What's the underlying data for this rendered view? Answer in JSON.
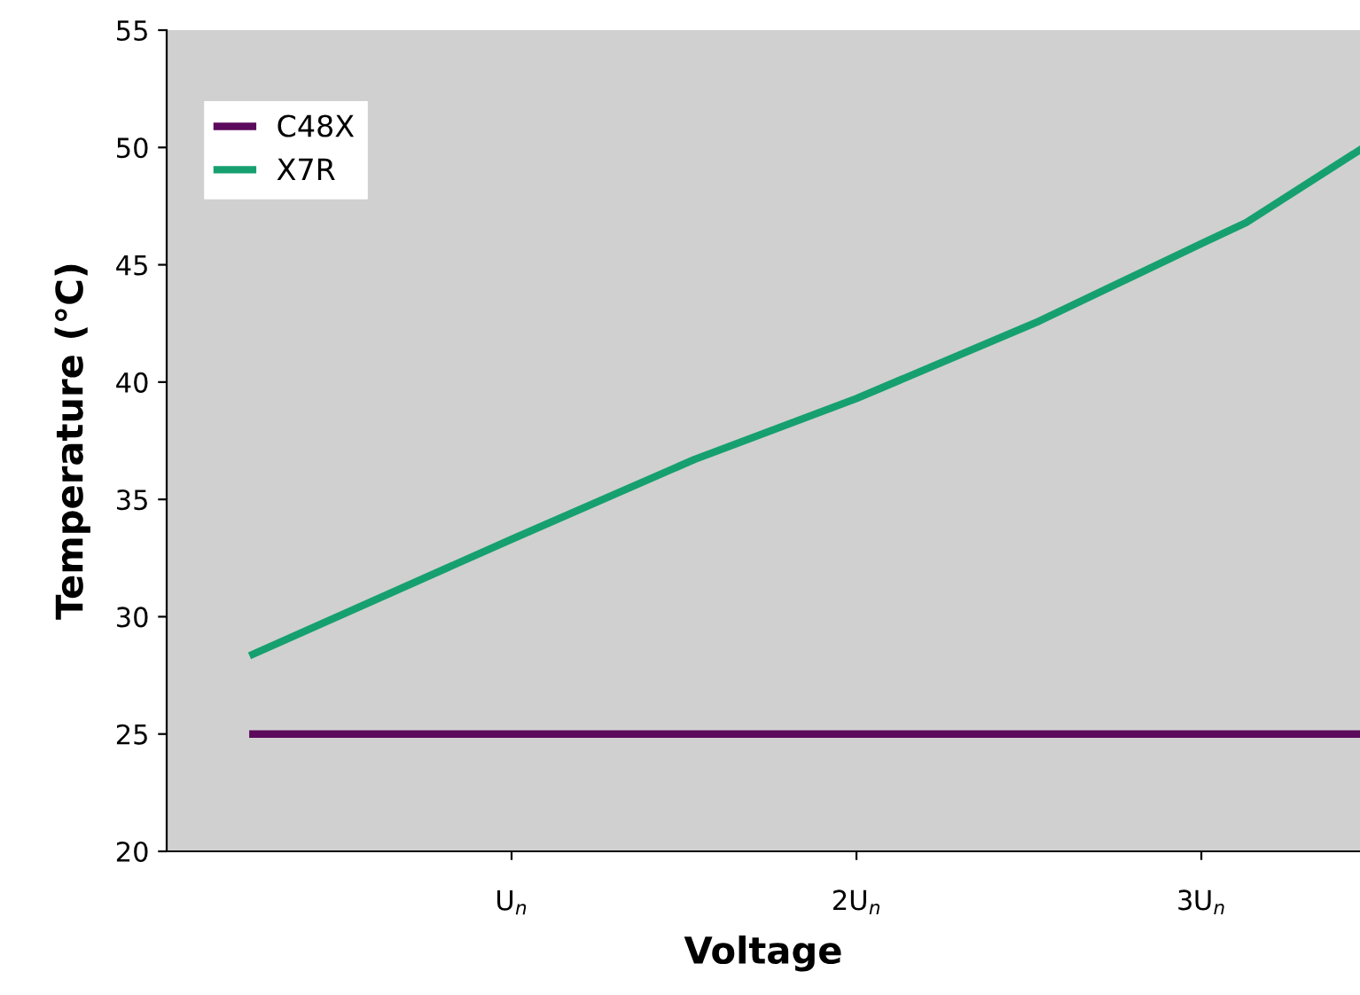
{
  "chart_data": {
    "type": "line",
    "xlabel": "Voltage",
    "ylabel": "Temperature (°C)",
    "xlim": [
      0,
      3.46
    ],
    "xticks": [
      {
        "value": 1,
        "label": "U$_{n}$"
      },
      {
        "value": 2,
        "label": "2U$_{n}$"
      },
      {
        "value": 3,
        "label": "3U$_{n}$"
      }
    ],
    "ylim": [
      20,
      55
    ],
    "yticks": [
      20,
      25,
      30,
      35,
      40,
      45,
      50,
      55
    ],
    "grid": false,
    "legend": "top left",
    "marker": "none",
    "line_style": "solid",
    "series": [
      {
        "name": "C48X",
        "color": "#5c0a5c",
        "x": [
          0.25,
          3.46
        ],
        "values": [
          25,
          25
        ]
      },
      {
        "name": "X7R",
        "color": "#16a070",
        "x": [
          0.25,
          1.0,
          1.53,
          2.0,
          2.53,
          3.0,
          3.13,
          3.46
        ],
        "values": [
          28.4,
          33.3,
          36.7,
          39.3,
          42.6,
          45.9,
          46.8,
          49.9
        ]
      }
    ]
  }
}
